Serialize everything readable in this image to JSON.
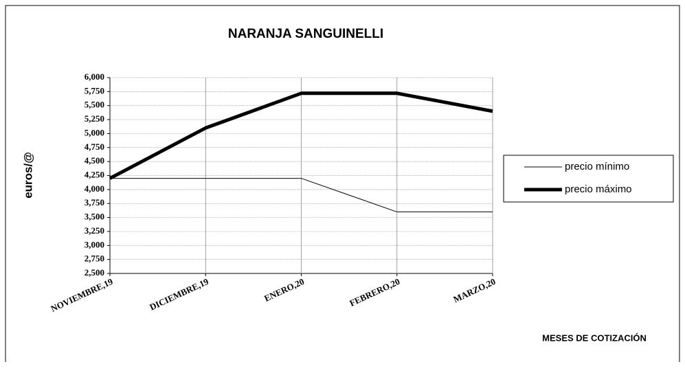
{
  "chart_data": {
    "type": "line",
    "title": "NARANJA SANGUINELLI",
    "y_label": "euros/@",
    "x_label": "MESES DE COTIZACIÓN",
    "categories": [
      "NOVIEMBRE,19",
      "DICIEMBRE,19",
      "ENERO,20",
      "FEBRERO,20",
      "MARZO,20"
    ],
    "series": [
      {
        "name": "precio mínimo",
        "color": "#000000",
        "width": 1,
        "values": [
          4.2,
          4.2,
          4.2,
          3.6,
          3.6
        ]
      },
      {
        "name": "precio máximo",
        "color": "#000000",
        "width": 5,
        "values": [
          4.2,
          5.1,
          5.72,
          5.72,
          5.4
        ]
      }
    ],
    "ylim": [
      2.5,
      6
    ],
    "yticks": [
      {
        "value": 2.5,
        "label": "2,500"
      },
      {
        "value": 2.75,
        "label": "2,750"
      },
      {
        "value": 3,
        "label": "3,000"
      },
      {
        "value": 3.25,
        "label": "3,250"
      },
      {
        "value": 3.5,
        "label": "3,500"
      },
      {
        "value": 3.75,
        "label": "3,750"
      },
      {
        "value": 4,
        "label": "4,000"
      },
      {
        "value": 4.25,
        "label": "4,250"
      },
      {
        "value": 4.5,
        "label": "4,500"
      },
      {
        "value": 4.75,
        "label": "4,750"
      },
      {
        "value": 5,
        "label": "5,000"
      },
      {
        "value": 5.25,
        "label": "5,250"
      },
      {
        "value": 5.5,
        "label": "5,500"
      },
      {
        "value": 5.75,
        "label": "5,750"
      },
      {
        "value": 6,
        "label": "6,000"
      }
    ],
    "grid": true
  }
}
